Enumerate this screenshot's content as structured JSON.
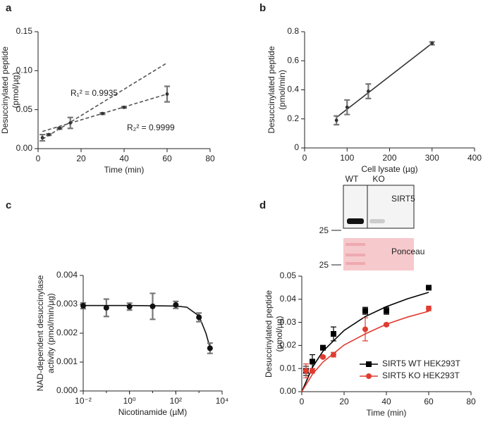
{
  "chart_data": [
    {
      "type": "scatter",
      "label": "a",
      "xlabel": "Time (min)",
      "ylabel": [
        "Desuccinylated peptide",
        "(pmol/µg)"
      ],
      "xlim": [
        0,
        80
      ],
      "xticks": [
        0,
        20,
        40,
        60,
        80
      ],
      "ylim": [
        0,
        0.15
      ],
      "yticks": [
        {
          "value": 0,
          "label": "0.00"
        },
        {
          "value": 0.05,
          "label": "0.05"
        },
        {
          "value": 0.1,
          "label": "0.10"
        },
        {
          "value": 0.15,
          "label": "0.15"
        }
      ],
      "series": [
        {
          "color": "#333333",
          "marker": "dot",
          "x": [
            2,
            5,
            10,
            15,
            30,
            40,
            60
          ],
          "values": [
            0.014,
            0.018,
            0.026,
            0.033,
            0.045,
            0.053,
            0.07
          ],
          "errors": [
            0.004,
            0.001,
            0.001,
            0.007,
            0.001,
            0.001,
            0.01
          ]
        }
      ],
      "fits": [
        {
          "color": "#555555",
          "dashed": true,
          "x": [
            2,
            60
          ],
          "values": [
            0.012,
            0.11
          ]
        },
        {
          "color": "#555555",
          "dashed": true,
          "x": [
            2,
            60
          ],
          "values": [
            0.022,
            0.07
          ]
        }
      ],
      "annotations": [
        "R₁² = 0.9935",
        "R₂² = 0.9999"
      ]
    },
    {
      "type": "scatter",
      "label": "b",
      "xlabel": "Cell lysate (µg)",
      "ylabel": [
        "Desuccinylated peptide",
        "(pmol/min)"
      ],
      "xlim": [
        0,
        400
      ],
      "xticks": [
        0,
        100,
        200,
        300,
        400
      ],
      "ylim": [
        0,
        0.8
      ],
      "yticks": [
        0,
        0.2,
        0.4,
        0.6,
        0.8
      ],
      "series": [
        {
          "color": "#333333",
          "marker": "dot",
          "x": [
            75,
            100,
            150,
            300
          ],
          "values": [
            0.19,
            0.28,
            0.39,
            0.72
          ],
          "errors": [
            0.03,
            0.05,
            0.05,
            0.01
          ]
        }
      ],
      "fits": [
        {
          "color": "#333333",
          "dashed": false,
          "x": [
            75,
            300
          ],
          "values": [
            0.21,
            0.72
          ]
        }
      ]
    },
    {
      "type": "scatter",
      "label": "c",
      "xlabel": "Nicotinamide (µM)",
      "ylabel": [
        "NAD-dependent desuccinylase",
        "activity (pmol/min/µg)"
      ],
      "xscale": "log",
      "xlim": [
        0.01,
        10000
      ],
      "xticks": [
        {
          "value": 0.01,
          "label": "10⁻²"
        },
        {
          "value": 1,
          "label": "10⁰"
        },
        {
          "value": 100,
          "label": "10²"
        },
        {
          "value": 10000,
          "label": "10⁴"
        }
      ],
      "ylim": [
        0,
        0.004
      ],
      "yticks": [
        {
          "value": 0,
          "label": "0.000"
        },
        {
          "value": 0.001,
          "label": "0.001"
        },
        {
          "value": 0.002,
          "label": "0.002"
        },
        {
          "value": 0.003,
          "label": "0.003"
        },
        {
          "value": 0.004,
          "label": "0.004"
        }
      ],
      "series": [
        {
          "color": "#111111",
          "marker": "circle",
          "x": [
            0.01,
            0.1,
            1,
            10,
            100,
            1000,
            3000
          ],
          "values": [
            0.00295,
            0.00288,
            0.00292,
            0.00293,
            0.00298,
            0.00255,
            0.00148
          ],
          "errors": [
            0.0001,
            0.0003,
            0.00012,
            0.00045,
            0.00012,
            0.00015,
            0.00018
          ]
        }
      ],
      "fits": [
        {
          "color": "#111111",
          "dashed": false,
          "x": [
            0.01,
            1,
            100,
            300,
            1000,
            2000,
            3000
          ],
          "values": [
            0.00296,
            0.00296,
            0.00294,
            0.0029,
            0.0026,
            0.002,
            0.0015
          ]
        }
      ]
    },
    {
      "type": "scatter",
      "label": "d",
      "xlabel": "Time (min)",
      "ylabel": [
        "Desuccinylated peptide",
        "(pmol/µg)"
      ],
      "xlim": [
        0,
        80
      ],
      "xticks": [
        0,
        20,
        40,
        60,
        80
      ],
      "ylim": [
        0,
        0.05
      ],
      "yticks": [
        {
          "value": 0,
          "label": "0.00"
        },
        0.01,
        0.02,
        0.03,
        0.04,
        0.05
      ],
      "series": [
        {
          "name": "SIRT5 WT HEK293T",
          "color": "#000000",
          "marker": "square",
          "x": [
            2,
            5,
            10,
            15,
            30,
            40,
            60
          ],
          "values": [
            0.009,
            0.013,
            0.019,
            0.025,
            0.035,
            0.035,
            0.045
          ],
          "errors": [
            0.002,
            0.003,
            0.001,
            0.003,
            0.0015,
            0.0015,
            0
          ]
        },
        {
          "name": "SIRT5 KO HEK293T",
          "color": "#e03c31",
          "marker": "circle",
          "x": [
            2,
            5,
            10,
            15,
            30,
            40,
            60
          ],
          "values": [
            0.009,
            0.009,
            0.015,
            0.016,
            0.027,
            0.029,
            0.036
          ],
          "errors": [
            0.003,
            0.001,
            0.0005,
            0.001,
            0.005,
            0.0005,
            0.001
          ]
        }
      ],
      "fits": [
        {
          "color": "#000000",
          "dashed": false,
          "x": [
            0,
            5,
            10,
            20,
            30,
            40,
            50,
            60
          ],
          "values": [
            0,
            0.0105,
            0.0175,
            0.0265,
            0.0325,
            0.0368,
            0.0402,
            0.043
          ]
        },
        {
          "color": "#e03c31",
          "dashed": false,
          "x": [
            0,
            5,
            10,
            20,
            30,
            40,
            50,
            60
          ],
          "values": [
            0,
            0.0075,
            0.0128,
            0.0202,
            0.025,
            0.0292,
            0.0323,
            0.0348
          ]
        }
      ],
      "inset": {
        "lanes": [
          "WT",
          "KO"
        ],
        "bands": [
          "SIRT5",
          "Ponceau"
        ],
        "markers": [
          "25",
          "25"
        ]
      }
    }
  ]
}
